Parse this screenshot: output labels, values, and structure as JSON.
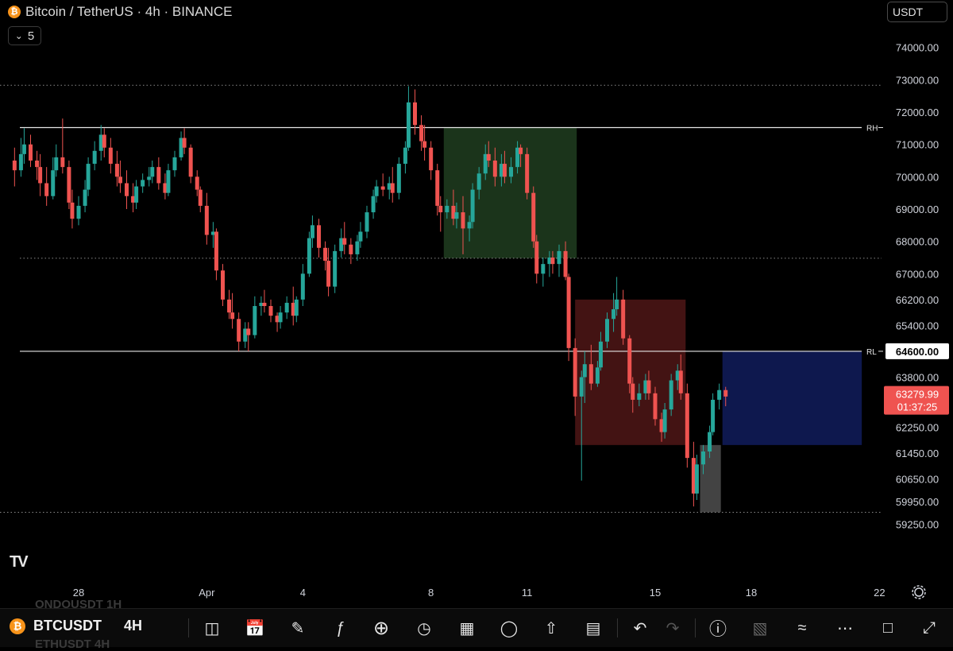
{
  "header": {
    "title": "Bitcoin / TetherUS · 4h · BINANCE",
    "indicator_count": "5",
    "currency": "USDT"
  },
  "colors": {
    "up": "#26a69a",
    "down": "#ef5350",
    "background": "#000000",
    "supply_zone": "#1e3a1e",
    "demand_zone": "#4a1515",
    "target_zone": "#0f1b57",
    "gray_zone": "#595959"
  },
  "chart_data": {
    "type": "candlestick",
    "symbol": "BTCUSDT",
    "timeframe": "4h",
    "ylim": [
      59000,
      75200
    ],
    "y_ticks": [
      74000,
      73000,
      72000,
      71000,
      70000,
      69000,
      68000,
      67000,
      66200,
      65400,
      63800,
      62250,
      61450,
      60650,
      59950,
      59250
    ],
    "y_tick_labels": [
      "74000.00",
      "73000.00",
      "72000.00",
      "71000.00",
      "70000.00",
      "69000.00",
      "68000.00",
      "67000.00",
      "66200.00",
      "65400.00",
      "63800.00",
      "62250.00",
      "61450.00",
      "60650.00",
      "59950.00",
      "59250.00"
    ],
    "x_ticks": [
      {
        "label": "28",
        "day": 28
      },
      {
        "label": "Apr",
        "day": 32
      },
      {
        "label": "4",
        "day": 35
      },
      {
        "label": "8",
        "day": 39
      },
      {
        "label": "11",
        "day": 42
      },
      {
        "label": "15",
        "day": 46
      },
      {
        "label": "18",
        "day": 49
      },
      {
        "label": "22",
        "day": 53
      }
    ],
    "x_range_days": [
      25.75,
      54
    ],
    "candles": [
      [
        26.0,
        70500,
        70900,
        69700,
        70200
      ],
      [
        26.2,
        70200,
        71200,
        70000,
        70700
      ],
      [
        26.3,
        70700,
        71500,
        70400,
        71000
      ],
      [
        26.5,
        71000,
        71300,
        70300,
        70500
      ],
      [
        26.7,
        70500,
        70800,
        69900,
        70300
      ],
      [
        26.8,
        70300,
        70700,
        69400,
        69800
      ],
      [
        27.0,
        69800,
        70300,
        69100,
        69400
      ],
      [
        27.2,
        69400,
        70600,
        69300,
        70200
      ],
      [
        27.3,
        70200,
        71000,
        70000,
        70600
      ],
      [
        27.5,
        70600,
        71800,
        70100,
        70300
      ],
      [
        27.7,
        70300,
        70500,
        69000,
        69200
      ],
      [
        27.8,
        69200,
        69600,
        68400,
        68700
      ],
      [
        28.0,
        68700,
        69400,
        68500,
        69100
      ],
      [
        28.2,
        69100,
        69900,
        68900,
        69600
      ],
      [
        28.3,
        69600,
        70600,
        69400,
        70400
      ],
      [
        28.5,
        70400,
        71100,
        70200,
        70800
      ],
      [
        28.7,
        70800,
        71600,
        70500,
        71300
      ],
      [
        28.8,
        71300,
        71500,
        70600,
        70900
      ],
      [
        29.0,
        70900,
        71200,
        70100,
        70400
      ],
      [
        29.2,
        70400,
        70800,
        69700,
        70000
      ],
      [
        29.3,
        70000,
        70500,
        69500,
        69800
      ],
      [
        29.5,
        69800,
        70200,
        69000,
        69400
      ],
      [
        29.7,
        69400,
        69800,
        68900,
        69200
      ],
      [
        29.8,
        69200,
        69900,
        69000,
        69700
      ],
      [
        30.0,
        69700,
        70100,
        69500,
        69900
      ],
      [
        30.2,
        69900,
        70300,
        69700,
        70000
      ],
      [
        30.3,
        70000,
        70500,
        69800,
        70300
      ],
      [
        30.5,
        70300,
        70600,
        69600,
        69800
      ],
      [
        30.7,
        69800,
        70100,
        69300,
        69500
      ],
      [
        30.8,
        69500,
        70400,
        69400,
        70200
      ],
      [
        31.0,
        70200,
        70800,
        70000,
        70600
      ],
      [
        31.2,
        70600,
        71400,
        70500,
        71200
      ],
      [
        31.3,
        71200,
        71500,
        70700,
        70900
      ],
      [
        31.5,
        70900,
        71000,
        69800,
        70000
      ],
      [
        31.7,
        70000,
        70200,
        69400,
        69600
      ],
      [
        31.8,
        69600,
        69700,
        68900,
        69100
      ],
      [
        32.0,
        69100,
        69500,
        67900,
        68200
      ],
      [
        32.2,
        68200,
        68600,
        67800,
        68300
      ],
      [
        32.3,
        68300,
        68400,
        66800,
        67100
      ],
      [
        32.5,
        67100,
        67300,
        66000,
        66200
      ],
      [
        32.7,
        66200,
        66500,
        65600,
        65800
      ],
      [
        32.8,
        65800,
        66400,
        65300,
        65600
      ],
      [
        33.0,
        65600,
        65800,
        64600,
        64900
      ],
      [
        33.2,
        64900,
        65500,
        64700,
        65300
      ],
      [
        33.3,
        65300,
        65500,
        64600,
        65100
      ],
      [
        33.5,
        65100,
        66300,
        65000,
        66000
      ],
      [
        33.7,
        66000,
        66300,
        65700,
        66100
      ],
      [
        33.8,
        66100,
        66500,
        65800,
        66000
      ],
      [
        34.0,
        66000,
        66200,
        65500,
        65700
      ],
      [
        34.2,
        65700,
        65800,
        65200,
        65500
      ],
      [
        34.3,
        65500,
        66000,
        65300,
        65800
      ],
      [
        34.5,
        65800,
        66300,
        65600,
        66100
      ],
      [
        34.7,
        66100,
        66600,
        65400,
        65700
      ],
      [
        34.8,
        65700,
        66300,
        65500,
        66200
      ],
      [
        35.0,
        66200,
        67300,
        66000,
        67000
      ],
      [
        35.2,
        67000,
        68300,
        66900,
        68100
      ],
      [
        35.3,
        68100,
        68800,
        67800,
        68500
      ],
      [
        35.5,
        68500,
        68700,
        67500,
        67800
      ],
      [
        35.7,
        67800,
        68000,
        67100,
        67400
      ],
      [
        35.8,
        67400,
        67800,
        66300,
        66600
      ],
      [
        36.0,
        66600,
        67900,
        66400,
        67700
      ],
      [
        36.2,
        67700,
        68400,
        67500,
        68100
      ],
      [
        36.3,
        68100,
        68600,
        67600,
        67900
      ],
      [
        36.5,
        67900,
        68100,
        67300,
        67600
      ],
      [
        36.7,
        67600,
        68200,
        67400,
        68000
      ],
      [
        36.8,
        68000,
        68600,
        67800,
        68300
      ],
      [
        37.0,
        68300,
        69100,
        68100,
        68900
      ],
      [
        37.2,
        68900,
        69600,
        68700,
        69400
      ],
      [
        37.3,
        69400,
        69900,
        69200,
        69700
      ],
      [
        37.5,
        69700,
        70100,
        69400,
        69600
      ],
      [
        37.7,
        69600,
        70000,
        69300,
        69800
      ],
      [
        37.8,
        69800,
        70300,
        69200,
        69500
      ],
      [
        38.0,
        69500,
        70600,
        69300,
        70400
      ],
      [
        38.2,
        70400,
        71100,
        70100,
        70900
      ],
      [
        38.3,
        70900,
        72800,
        70800,
        72300
      ],
      [
        38.5,
        72300,
        72700,
        71300,
        71600
      ],
      [
        38.7,
        71600,
        71900,
        70800,
        71100
      ],
      [
        38.8,
        71100,
        71600,
        70500,
        70900
      ],
      [
        39.0,
        70900,
        71100,
        69900,
        70200
      ],
      [
        39.2,
        70200,
        70400,
        68800,
        69100
      ],
      [
        39.3,
        69100,
        69400,
        68300,
        68900
      ],
      [
        39.5,
        68900,
        69300,
        68700,
        69100
      ],
      [
        39.7,
        69100,
        69600,
        68500,
        68700
      ],
      [
        39.8,
        68700,
        69200,
        68400,
        68900
      ],
      [
        40.0,
        68900,
        69400,
        67600,
        68400
      ],
      [
        40.2,
        68400,
        68800,
        68000,
        68600
      ],
      [
        40.3,
        68600,
        69800,
        68400,
        69600
      ],
      [
        40.5,
        69600,
        70300,
        69300,
        70100
      ],
      [
        40.7,
        70100,
        71000,
        69900,
        70700
      ],
      [
        40.8,
        70700,
        71100,
        70300,
        70500
      ],
      [
        41.0,
        70500,
        70900,
        69700,
        70000
      ],
      [
        41.2,
        70000,
        70700,
        69700,
        70400
      ],
      [
        41.3,
        70400,
        70800,
        69800,
        70000
      ],
      [
        41.5,
        70000,
        70600,
        69800,
        70300
      ],
      [
        41.7,
        70300,
        71100,
        70100,
        70900
      ],
      [
        41.8,
        70900,
        71000,
        70300,
        70700
      ],
      [
        42.0,
        70700,
        70900,
        69300,
        69500
      ],
      [
        42.2,
        69500,
        69700,
        67800,
        68000
      ],
      [
        42.3,
        68000,
        68200,
        66700,
        67000
      ],
      [
        42.5,
        67000,
        67500,
        66600,
        67300
      ],
      [
        42.7,
        67300,
        67700,
        66900,
        67500
      ],
      [
        42.8,
        67500,
        67700,
        67000,
        67300
      ],
      [
        43.0,
        67300,
        67900,
        66900,
        67700
      ],
      [
        43.2,
        67700,
        68000,
        66800,
        66900
      ],
      [
        43.3,
        66900,
        67000,
        64300,
        64700
      ],
      [
        43.5,
        64700,
        65000,
        62600,
        63200
      ],
      [
        43.7,
        63200,
        64000,
        60600,
        63800
      ],
      [
        43.8,
        63800,
        64600,
        63000,
        64200
      ],
      [
        44.0,
        64200,
        64800,
        63400,
        63600
      ],
      [
        44.2,
        63600,
        64300,
        63500,
        64100
      ],
      [
        44.3,
        64100,
        65200,
        64000,
        64900
      ],
      [
        44.5,
        64900,
        65800,
        64700,
        65600
      ],
      [
        44.7,
        65600,
        66400,
        65200,
        65900
      ],
      [
        44.8,
        65900,
        66900,
        65700,
        66200
      ],
      [
        45.0,
        66200,
        66500,
        64800,
        65000
      ],
      [
        45.2,
        65000,
        65100,
        63300,
        63600
      ],
      [
        45.3,
        63600,
        63800,
        62700,
        63100
      ],
      [
        45.5,
        63100,
        63600,
        62900,
        63300
      ],
      [
        45.7,
        63300,
        63900,
        63100,
        63700
      ],
      [
        45.8,
        63700,
        64000,
        63100,
        63300
      ],
      [
        46.0,
        63300,
        63500,
        62300,
        62500
      ],
      [
        46.2,
        62500,
        62700,
        61800,
        62100
      ],
      [
        46.3,
        62100,
        63000,
        61900,
        62800
      ],
      [
        46.5,
        62800,
        63900,
        62600,
        63700
      ],
      [
        46.7,
        63700,
        64200,
        63400,
        64000
      ],
      [
        46.8,
        64000,
        64500,
        63100,
        63300
      ],
      [
        47.0,
        63300,
        63600,
        61000,
        61300
      ],
      [
        47.2,
        61300,
        61800,
        59800,
        60200
      ],
      [
        47.3,
        60200,
        61400,
        60000,
        61100
      ],
      [
        47.5,
        61100,
        61700,
        60800,
        61500
      ],
      [
        47.7,
        61500,
        62300,
        61300,
        62100
      ],
      [
        47.8,
        62100,
        63300,
        62000,
        63100
      ],
      [
        48.0,
        63100,
        63600,
        62800,
        63400
      ],
      [
        48.2,
        63400,
        63500,
        62900,
        63200
      ]
    ],
    "levels": [
      {
        "label": "RH",
        "price": 71520,
        "style": "solid"
      },
      {
        "label": "RL",
        "price": 64600,
        "style": "solid"
      },
      {
        "label": "",
        "price": 72830,
        "style": "dotted"
      },
      {
        "label": "",
        "price": 67480,
        "style": "dotted"
      },
      {
        "label": "",
        "price": 59620,
        "style": "dotted"
      }
    ],
    "zones": [
      {
        "name": "green",
        "day_start": 39.4,
        "day_end": 43.55,
        "price_top": 71520,
        "price_bottom": 67480
      },
      {
        "name": "red",
        "day_start": 43.5,
        "day_end": 46.95,
        "price_top": 66200,
        "price_bottom": 61700
      },
      {
        "name": "blue",
        "day_start": 48.1,
        "day_end": 52.45,
        "price_top": 64600,
        "price_bottom": 61700
      },
      {
        "name": "gray",
        "day_start": 47.4,
        "day_end": 48.05,
        "price_top": 61700,
        "price_bottom": 59620
      }
    ],
    "rl_price_label": "64600.00",
    "last_price": {
      "value": "63279.99",
      "countdown": "01:37:25"
    }
  },
  "toolbar": {
    "symbol": "BTCUSDT",
    "timeframe": "4H",
    "ghost_above": "ONDOUSDT   1H",
    "ghost_below": "ETHUSDT   4H"
  }
}
